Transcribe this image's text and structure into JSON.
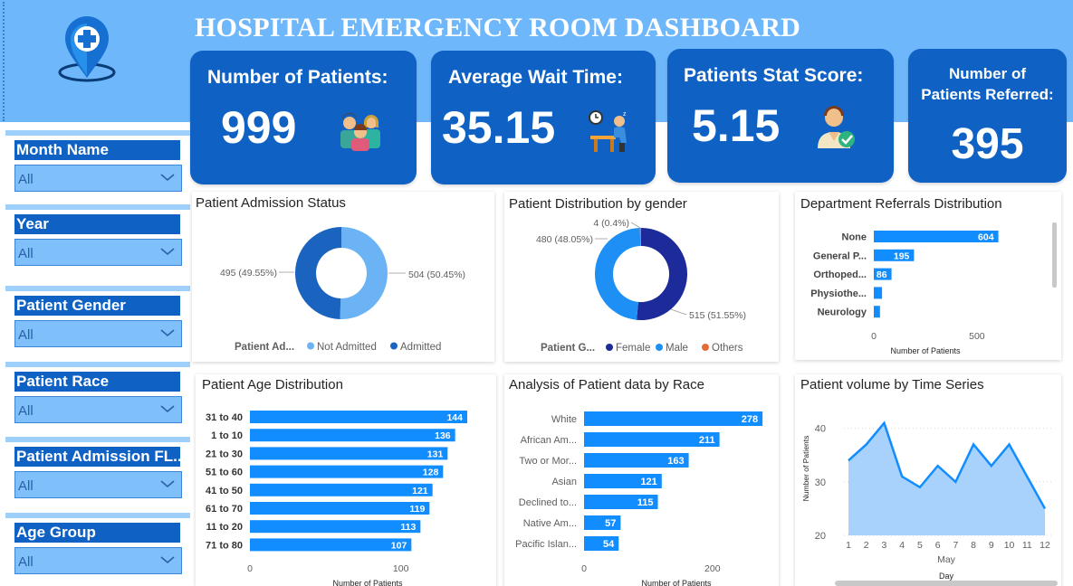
{
  "header": {
    "title": "HOSPITAL EMERGENCY ROOM DASHBOARD"
  },
  "kpis": {
    "patients": {
      "label": "Number of Patients:",
      "value": "999",
      "icon": "patients-group-icon"
    },
    "wait": {
      "label": "Average Wait Time:",
      "value": "35.15",
      "icon": "waiting-person-icon"
    },
    "stat": {
      "label": "Patients Stat Score:",
      "value": "5.15",
      "icon": "patient-check-icon"
    },
    "referred": {
      "label_line1": "Number of",
      "label_line2": "Patients Referred:",
      "value": "395"
    }
  },
  "slicers": [
    {
      "label": "Month Name",
      "value": "All"
    },
    {
      "label": "Year",
      "value": "All"
    },
    {
      "label": "Patient Gender",
      "value": "All"
    },
    {
      "label": "Patient Race",
      "value": "All"
    },
    {
      "label": "Patient Admission FL...",
      "value": "All"
    },
    {
      "label": "Age Group",
      "value": "All"
    }
  ],
  "colors": {
    "header": "#6fb7fb",
    "kpi": "#0f62c4",
    "bar": "#118dff",
    "admitted": "#1a64bf",
    "not_admitted": "#6cb3f5",
    "female": "#1d2a9a",
    "male": "#1e90f5",
    "others": "#e66c37",
    "area_fill": "#9fcdfb"
  },
  "chart_data": [
    {
      "type": "pie",
      "variant": "donut",
      "title": "Patient Admission Status",
      "legend_title": "Patient Ad...",
      "legend": [
        "Not Admitted",
        "Admitted"
      ],
      "slices": [
        {
          "name": "Not Admitted",
          "value": 504,
          "label": "504 (50.45%)"
        },
        {
          "name": "Admitted",
          "value": 495,
          "label": "495 (49.55%)"
        }
      ]
    },
    {
      "type": "pie",
      "variant": "donut",
      "title": "Patient Distribution by gender",
      "legend_title": "Patient G...",
      "legend": [
        "Female",
        "Male",
        "Others"
      ],
      "slices": [
        {
          "name": "Female",
          "value": 515,
          "label": "515 (51.55%)"
        },
        {
          "name": "Male",
          "value": 480,
          "label": "480 (48.05%)"
        },
        {
          "name": "Others",
          "value": 4,
          "label": "4 (0.4%)"
        }
      ]
    },
    {
      "type": "bar",
      "orientation": "horizontal",
      "title": "Department Referrals Distribution",
      "categories": [
        "None",
        "General P...",
        "Orthoped...",
        "Physiothe...",
        "Neurology"
      ],
      "values": [
        604,
        195,
        86,
        40,
        30
      ],
      "data_labels": [
        "604",
        "195",
        "86",
        "",
        ""
      ],
      "xlabel": "Number of Patients",
      "xticks": [
        "0",
        "500"
      ],
      "xlim": [
        0,
        900
      ]
    },
    {
      "type": "bar",
      "orientation": "horizontal",
      "title": "Patient Age Distribution",
      "categories": [
        "31 to 40",
        "1 to 10",
        "21 to 30",
        "51 to 60",
        "41 to 50",
        "61 to 70",
        "11 to 20",
        "71 to 80"
      ],
      "values": [
        144,
        136,
        131,
        128,
        121,
        119,
        113,
        107
      ],
      "xlabel": "Number of Patients",
      "xticks": [
        "0",
        "100"
      ],
      "xlim": [
        0,
        165
      ]
    },
    {
      "type": "bar",
      "orientation": "horizontal",
      "title": "Analysis of Patient data by Race",
      "categories": [
        "White",
        "African Am...",
        "Two or Mor...",
        "Asian",
        "Declined to...",
        "Native Am...",
        "Pacific Islan..."
      ],
      "values": [
        278,
        211,
        163,
        121,
        115,
        57,
        54
      ],
      "xlabel": "Number of Patients",
      "xticks": [
        "0",
        "200"
      ],
      "xlim": [
        0,
        330
      ]
    },
    {
      "type": "area",
      "title": "Patient volume by Time Series",
      "x": [
        1,
        2,
        3,
        4,
        5,
        6,
        7,
        8,
        9,
        10,
        11,
        12
      ],
      "y": [
        34,
        37,
        41,
        31,
        29,
        33,
        30,
        37,
        33,
        37,
        31,
        25
      ],
      "xlabel": "Day",
      "xsublabel": "May",
      "ylabel": "Number of Patients",
      "yticks": [
        "20",
        "30",
        "40"
      ],
      "ylim": [
        20,
        43
      ]
    }
  ]
}
